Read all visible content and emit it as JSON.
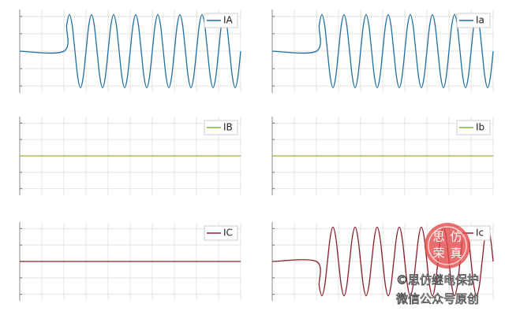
{
  "chart_data": [
    {
      "type": "line",
      "x": [
        0,
        0.04,
        0.0425,
        0.045,
        0.0475,
        0.05,
        0.0525,
        0.055,
        0.0575,
        0.06,
        0.0625,
        0.065,
        0.0675,
        0.07,
        0.0725,
        0.075,
        0.0775,
        0.08,
        0.0825,
        0.085,
        0.0875,
        0.09,
        0.0925,
        0.095,
        0.0975,
        0.1,
        0.1025,
        0.105,
        0.1075,
        0.11,
        0.1125,
        0.115,
        0.1175,
        0.12,
        0.1225,
        0.125,
        0.1275,
        0.13,
        0.1325,
        0.135,
        0.1375,
        0.14,
        0.1425,
        0.145,
        0.1475,
        0.15,
        0.1525,
        0.155,
        0.1575,
        0.16,
        0.1625,
        0.165,
        0.1675,
        0.17,
        0.1725,
        0.175,
        0.1775,
        0.18,
        0.1825,
        0.185,
        0.1875,
        0.19,
        0.1925,
        0.195,
        0.1975,
        0.2
      ],
      "series": [
        {
          "name": "IA",
          "color": "#1d6fa3",
          "values": [
            0,
            0,
            1.48,
            2.1,
            1.48,
            0,
            -1.48,
            -2.1,
            -1.48,
            0,
            1.48,
            2.1,
            1.48,
            0,
            -1.48,
            -2.1,
            -1.48,
            0,
            1.48,
            2.1,
            1.48,
            0,
            -1.48,
            -2.1,
            -1.48,
            0,
            1.48,
            2.1,
            1.48,
            0,
            -1.48,
            -2.1,
            -1.48,
            0,
            1.48,
            2.1,
            1.48,
            0,
            -1.48,
            -2.1,
            -1.48,
            0,
            1.48,
            2.1,
            1.48,
            0,
            -1.48,
            -2.1,
            -1.48,
            0,
            1.48,
            2.1,
            1.48,
            0,
            -1.48,
            -2.1,
            -1.48,
            0,
            1.48,
            2.1,
            1.48,
            0,
            -1.48,
            -2.1,
            -1.48,
            0
          ]
        }
      ],
      "xlim": [
        0,
        0.2
      ],
      "ylim": [
        -2.4,
        2.4
      ],
      "xticks": [
        0,
        0.02,
        0.04,
        0.06,
        0.08,
        0.1,
        0.12,
        0.14,
        0.16,
        0.18,
        0.2
      ],
      "yticks": [
        -2,
        -1,
        0,
        1,
        2
      ],
      "grid": true,
      "legend": "upper right"
    },
    {
      "type": "line",
      "x": [
        0,
        0.04,
        0.0425,
        0.045,
        0.0475,
        0.05,
        0.0525,
        0.055,
        0.0575,
        0.06,
        0.0625,
        0.065,
        0.0675,
        0.07,
        0.0725,
        0.075,
        0.0775,
        0.08,
        0.0825,
        0.085,
        0.0875,
        0.09,
        0.0925,
        0.095,
        0.0975,
        0.1,
        0.1025,
        0.105,
        0.1075,
        0.11,
        0.1125,
        0.115,
        0.1175,
        0.12,
        0.1225,
        0.125,
        0.1275,
        0.13,
        0.1325,
        0.135,
        0.1375,
        0.14,
        0.1425,
        0.145,
        0.1475,
        0.15,
        0.1525,
        0.155,
        0.1575,
        0.16,
        0.1625,
        0.165,
        0.1675,
        0.17,
        0.1725,
        0.175,
        0.1775,
        0.18,
        0.1825,
        0.185,
        0.1875,
        0.19,
        0.1925,
        0.195,
        0.1975,
        0.2
      ],
      "series": [
        {
          "name": "Ia",
          "color": "#1d6fa3",
          "values": [
            0,
            0,
            1.48,
            2.1,
            1.48,
            0,
            -1.48,
            -2.1,
            -1.48,
            0,
            1.48,
            2.1,
            1.48,
            0,
            -1.48,
            -2.1,
            -1.48,
            0,
            1.48,
            2.1,
            1.48,
            0,
            -1.48,
            -2.1,
            -1.48,
            0,
            1.48,
            2.1,
            1.48,
            0,
            -1.48,
            -2.1,
            -1.48,
            0,
            1.48,
            2.1,
            1.48,
            0,
            -1.48,
            -2.1,
            -1.48,
            0,
            1.48,
            2.1,
            1.48,
            0,
            -1.48,
            -2.1,
            -1.48,
            0,
            1.48,
            2.1,
            1.48,
            0,
            -1.48,
            -2.1,
            -1.48,
            0,
            1.48,
            2.1,
            1.48,
            0,
            -1.48,
            -2.1,
            -1.48,
            0
          ]
        }
      ],
      "xlim": [
        0,
        0.2
      ],
      "ylim": [
        -2.4,
        2.4
      ],
      "xticks": [
        0,
        0.02,
        0.04,
        0.06,
        0.08,
        0.1,
        0.12,
        0.14,
        0.16,
        0.18,
        0.2
      ],
      "yticks": [
        -2,
        -1,
        0,
        1,
        2
      ],
      "grid": true,
      "legend": "upper right"
    },
    {
      "type": "line",
      "x": [
        0,
        0.2
      ],
      "series": [
        {
          "name": "IB",
          "color": "#8fb339",
          "values": [
            0,
            0
          ]
        }
      ],
      "xlim": [
        0,
        0.2
      ],
      "ylim": [
        -2.4,
        2.4
      ],
      "xticks": [
        0,
        0.02,
        0.04,
        0.06,
        0.08,
        0.1,
        0.12,
        0.14,
        0.16,
        0.18,
        0.2
      ],
      "yticks": [
        -2,
        -1,
        0,
        1,
        2
      ],
      "grid": true,
      "legend": "upper right"
    },
    {
      "type": "line",
      "x": [
        0,
        0.2
      ],
      "series": [
        {
          "name": "Ib",
          "color": "#8fb339",
          "values": [
            0,
            0
          ]
        }
      ],
      "xlim": [
        0,
        0.2
      ],
      "ylim": [
        -2.4,
        2.4
      ],
      "xticks": [
        0,
        0.02,
        0.04,
        0.06,
        0.08,
        0.1,
        0.12,
        0.14,
        0.16,
        0.18,
        0.2
      ],
      "yticks": [
        -2,
        -1,
        0,
        1,
        2
      ],
      "grid": true,
      "legend": "upper right"
    },
    {
      "type": "line",
      "x": [
        0,
        0.2
      ],
      "series": [
        {
          "name": "IC",
          "color": "#8c1c2e",
          "values": [
            0,
            0
          ]
        }
      ],
      "xlim": [
        0,
        0.2
      ],
      "ylim": [
        -2.4,
        2.4
      ],
      "xticks": [
        0,
        0.02,
        0.04,
        0.06,
        0.08,
        0.1,
        0.12,
        0.14,
        0.16,
        0.18,
        0.2
      ],
      "yticks": [
        -2,
        -1,
        0,
        1,
        2
      ],
      "grid": true,
      "legend": "upper right"
    },
    {
      "type": "line",
      "x": [
        0,
        0.04,
        0.0425,
        0.045,
        0.0475,
        0.05,
        0.0525,
        0.055,
        0.0575,
        0.06,
        0.0625,
        0.065,
        0.0675,
        0.07,
        0.0725,
        0.075,
        0.0775,
        0.08,
        0.0825,
        0.085,
        0.0875,
        0.09,
        0.0925,
        0.095,
        0.0975,
        0.1,
        0.1025,
        0.105,
        0.1075,
        0.11,
        0.1125,
        0.115,
        0.1175,
        0.12,
        0.1225,
        0.125,
        0.1275,
        0.13,
        0.1325,
        0.135,
        0.1375,
        0.14,
        0.1425,
        0.145,
        0.1475,
        0.15,
        0.1525,
        0.155,
        0.1575,
        0.16,
        0.1625,
        0.165,
        0.1675,
        0.17,
        0.1725,
        0.175,
        0.1775,
        0.18,
        0.1825,
        0.185,
        0.1875,
        0.19,
        0.1925,
        0.195,
        0.1975,
        0.2
      ],
      "series": [
        {
          "name": "Ic",
          "color": "#8c1c2e",
          "values": [
            0,
            0,
            -1.48,
            -2.1,
            -1.48,
            0,
            1.48,
            2.1,
            1.48,
            0,
            -1.48,
            -2.1,
            -1.48,
            0,
            1.48,
            2.1,
            1.48,
            0,
            -1.48,
            -2.1,
            -1.48,
            0,
            1.48,
            2.1,
            1.48,
            0,
            -1.48,
            -2.1,
            -1.48,
            0,
            1.48,
            2.1,
            1.48,
            0,
            -1.48,
            -2.1,
            -1.48,
            0,
            1.48,
            2.1,
            1.48,
            0,
            -1.48,
            -2.1,
            -1.48,
            0,
            1.48,
            2.1,
            1.48,
            0,
            -1.48,
            -2.1,
            -1.48,
            0,
            1.48,
            2.1,
            1.48,
            0,
            -1.48,
            -2.1,
            -1.48,
            0,
            1.48,
            2.1,
            1.48,
            0
          ]
        }
      ],
      "xlim": [
        0,
        0.2
      ],
      "ylim": [
        -2.4,
        2.4
      ],
      "xticks": [
        0,
        0.02,
        0.04,
        0.06,
        0.08,
        0.1,
        0.12,
        0.14,
        0.16,
        0.18,
        0.2
      ],
      "yticks": [
        -2,
        -1,
        0,
        1,
        2
      ],
      "grid": true,
      "legend": "upper right"
    }
  ],
  "watermark": {
    "stamp": [
      "思",
      "仿",
      "荣",
      "真"
    ],
    "lines": [
      "©思仿继电保护",
      "微信公众号原创"
    ]
  }
}
